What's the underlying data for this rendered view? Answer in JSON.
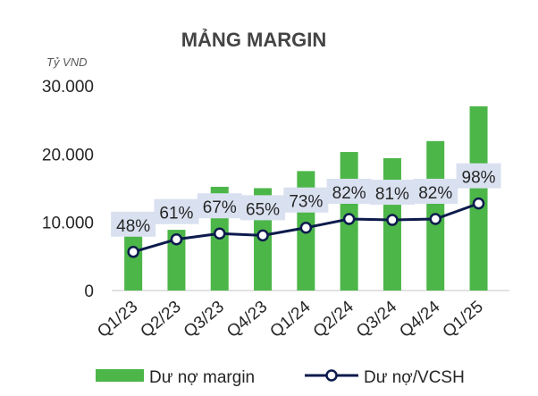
{
  "chart_data": {
    "type": "bar+line",
    "title": "MẢNG MARGIN",
    "unit_label": "Tỷ VND",
    "categories": [
      "Q1/23",
      "Q2/23",
      "Q3/23",
      "Q4/23",
      "Q1/24",
      "Q2/24",
      "Q3/24",
      "Q4/24",
      "Q1/25"
    ],
    "y_ticks": [
      "30.000",
      "20.000",
      "10.000",
      "0"
    ],
    "ylim": [
      0,
      30000
    ],
    "bars": {
      "name": "Dư nợ margin",
      "color": "#4cb648",
      "values": [
        8000,
        8900,
        15200,
        15000,
        17500,
        20300,
        19400,
        21900,
        27000
      ]
    },
    "line": {
      "name": "Dư nợ/VCSH",
      "color": "#0d1b4c",
      "values": [
        48,
        61,
        67,
        65,
        73,
        82,
        81,
        82,
        98
      ],
      "labels": [
        "48%",
        "61%",
        "67%",
        "65%",
        "73%",
        "82%",
        "81%",
        "82%",
        "98%"
      ],
      "label_box_color": "#d9e1f0"
    },
    "grid": false,
    "legend": "bottom"
  }
}
